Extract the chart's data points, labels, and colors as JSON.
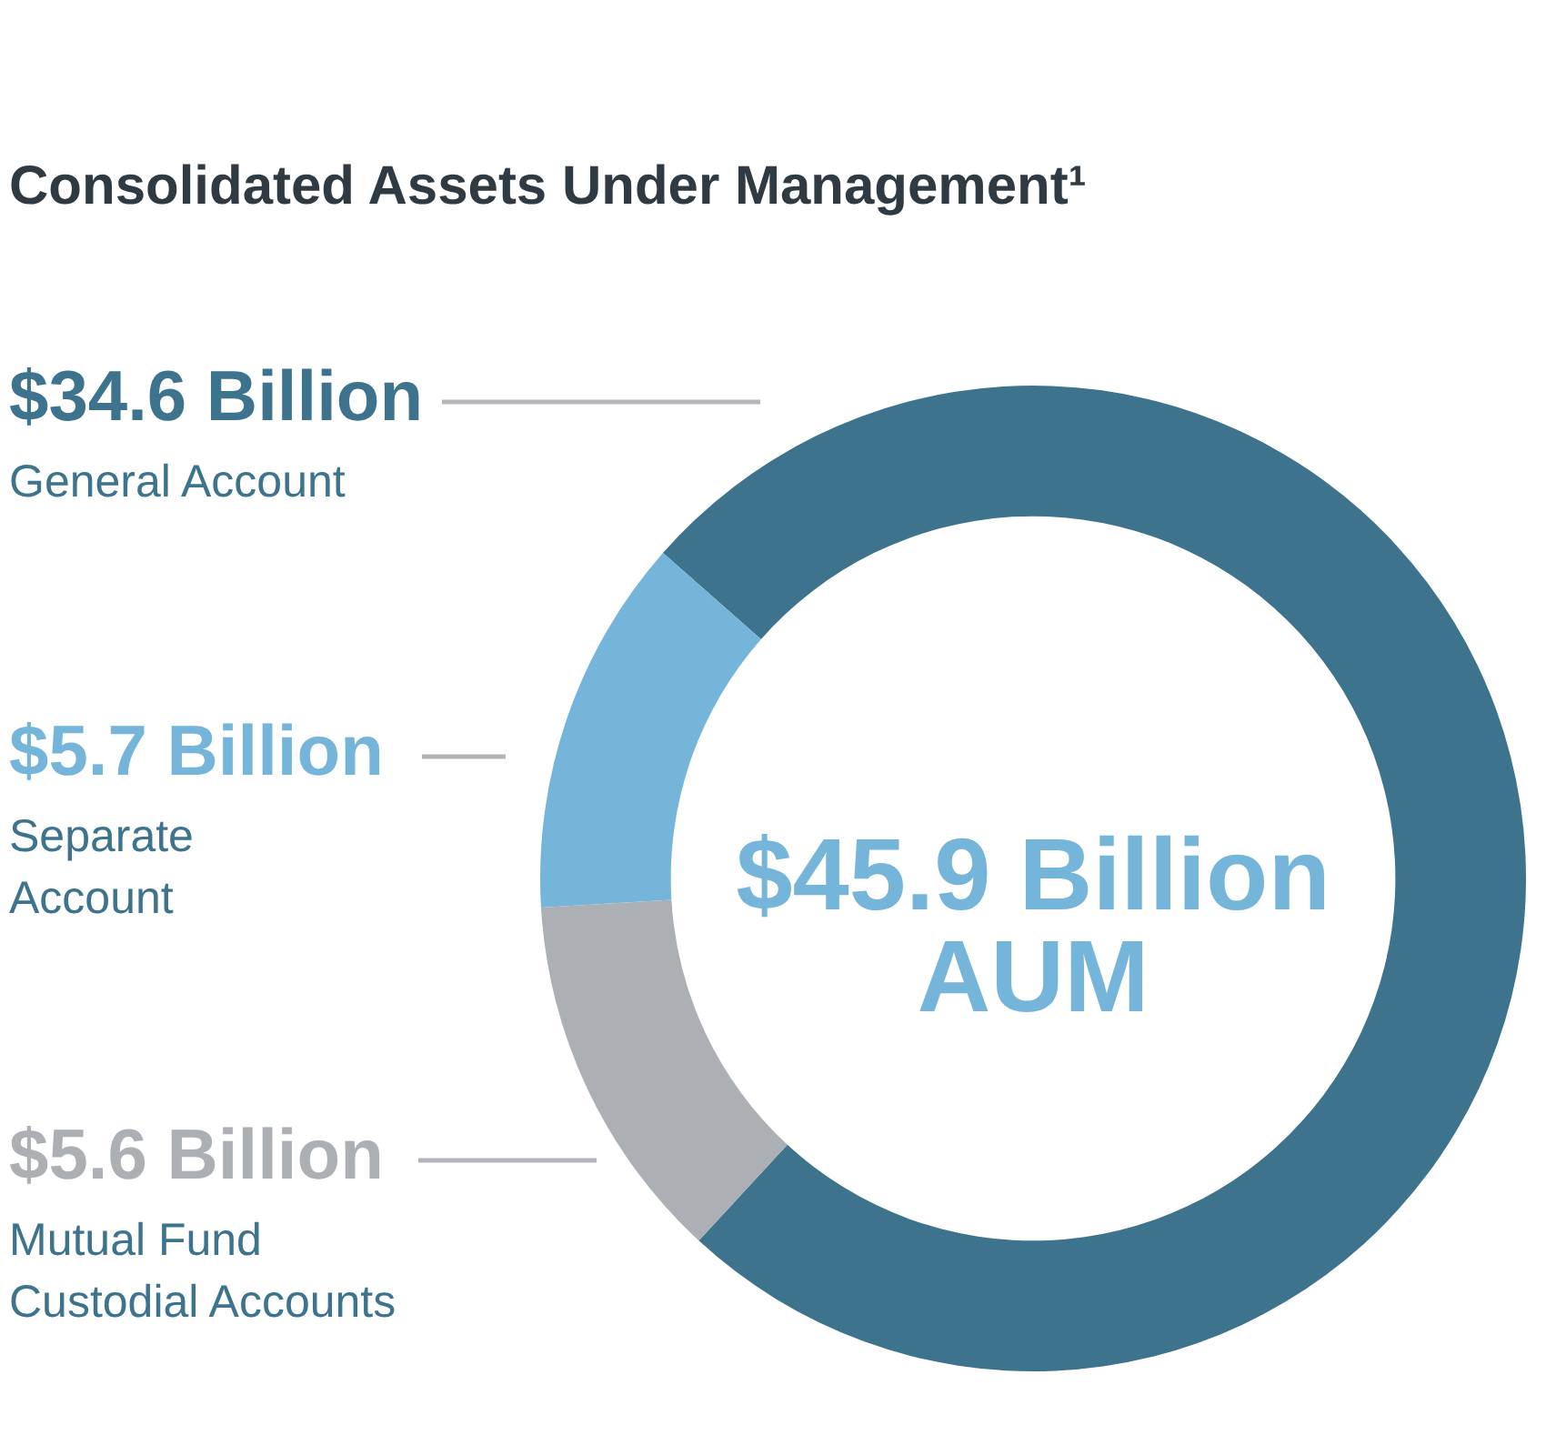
{
  "chart_data": {
    "type": "donut",
    "title": "Consolidated Assets Under Management¹",
    "categories": [
      "General Account",
      "Separate\nAccount",
      "Mutual Fund\nCustodial Accounts"
    ],
    "values": [
      34.6,
      5.7,
      5.6
    ],
    "value_labels": [
      "$34.6 Billion",
      "$5.7 Billion",
      "$5.6 Billion"
    ],
    "colors": [
      "#3d738c",
      "#75b5d9",
      "#acb0b4"
    ],
    "annotations": [
      "$45.9 Billion\nAUM"
    ]
  }
}
